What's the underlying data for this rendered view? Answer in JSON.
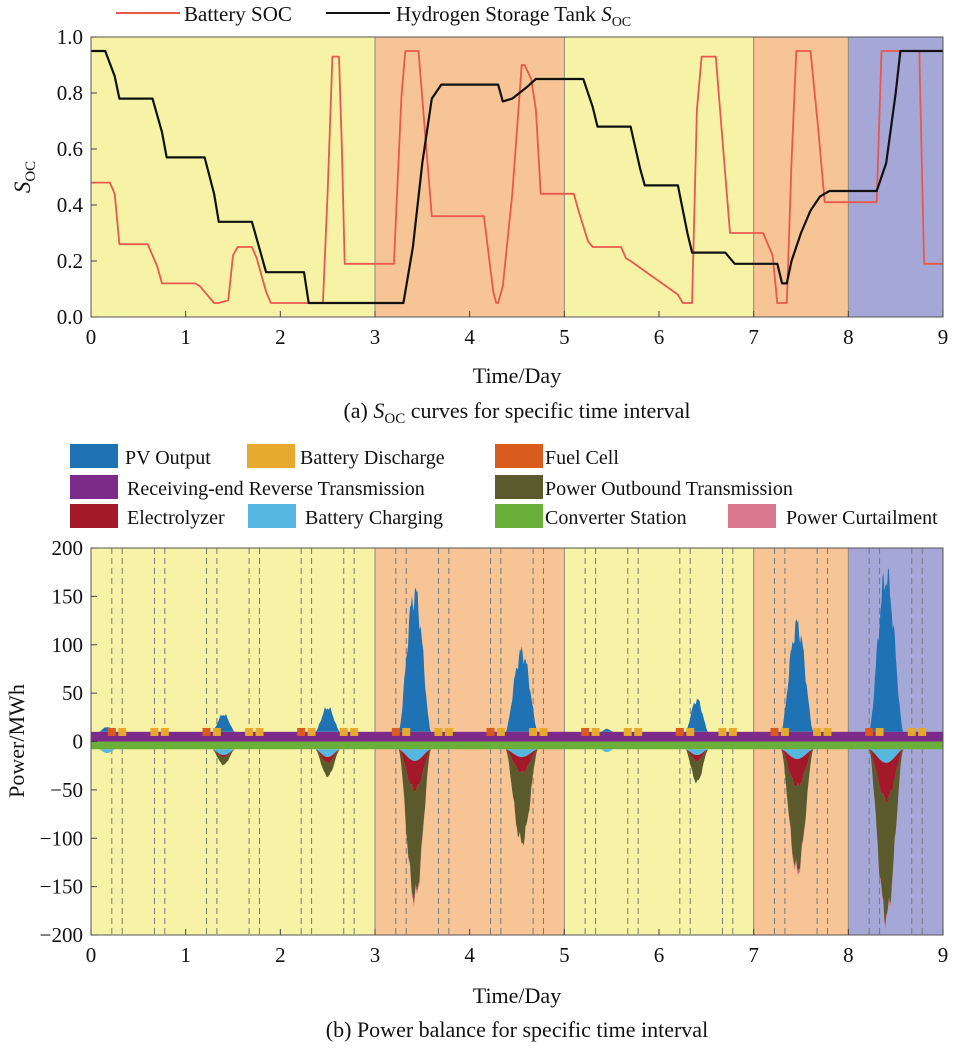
{
  "colors": {
    "band_yellow": "#f7f3a6",
    "band_orange": "#f6c495",
    "band_purple": "#a5a8d6",
    "battery_soc": "#e8584c",
    "hydrogen_soc": "#111111",
    "pv": "#1f72b4",
    "battery_discharge": "#e6a92d",
    "fuel_cell": "#d95b1e",
    "receiving_reverse": "#7d2b8b",
    "outbound": "#5a5a2c",
    "electrolyzer": "#a3192a",
    "battery_charging": "#56b7e0",
    "converter": "#6aaf3a",
    "curtailment": "#d9788f"
  },
  "chart_data": [
    {
      "type": "line",
      "caption_prefix": "(a) ",
      "caption_sym": "S",
      "caption_sub": "OC",
      "caption_suffix": " curves for specific time interval",
      "xlabel": "Time/Day",
      "ylabel_sym": "S",
      "ylabel_sub": "OC",
      "xlim": [
        0,
        9
      ],
      "ylim": [
        0,
        1
      ],
      "xticks": [
        "0",
        "1",
        "2",
        "3",
        "4",
        "5",
        "6",
        "7",
        "8",
        "9"
      ],
      "yticks": [
        "0.0",
        "0.2",
        "0.4",
        "0.6",
        "0.8",
        "1.0"
      ],
      "bands": [
        {
          "from": 0,
          "to": 3,
          "color": "yellow"
        },
        {
          "from": 3,
          "to": 5,
          "color": "orange"
        },
        {
          "from": 5,
          "to": 7,
          "color": "yellow"
        },
        {
          "from": 7,
          "to": 8,
          "color": "orange"
        },
        {
          "from": 8,
          "to": 9,
          "color": "purple"
        }
      ],
      "legend": {
        "battery": "Battery SOC",
        "hydrogen_prefix": "Hydrogen Storage Tank ",
        "hydrogen_sym": "S",
        "hydrogen_sub": "OC"
      },
      "series": [
        {
          "name": "Battery SOC",
          "color": "battery_soc",
          "x": [
            0,
            0.2,
            0.25,
            0.3,
            0.6,
            0.65,
            0.7,
            0.75,
            1.1,
            1.15,
            1.2,
            1.3,
            1.35,
            1.45,
            1.5,
            1.55,
            1.7,
            1.75,
            1.85,
            1.9,
            2.0,
            2.05,
            2.3,
            2.45,
            2.5,
            2.55,
            2.58,
            2.62,
            2.65,
            2.68,
            2.75,
            2.8,
            3.0,
            3.2,
            3.28,
            3.32,
            3.42,
            3.46,
            3.6,
            3.65,
            3.8,
            4.15,
            4.25,
            4.28,
            4.3,
            4.35,
            4.45,
            4.55,
            4.58,
            4.65,
            4.7,
            4.75,
            4.8,
            5.0,
            5.1,
            5.15,
            5.25,
            5.3,
            5.6,
            5.65,
            5.7,
            6.2,
            6.25,
            6.35,
            6.4,
            6.45,
            6.6,
            6.65,
            6.75,
            6.8,
            7.0,
            7.1,
            7.2,
            7.25,
            7.35,
            7.4,
            7.45,
            7.6,
            7.68,
            7.75,
            7.8,
            8.0,
            8.3,
            8.35,
            8.5,
            8.55,
            8.75,
            8.8,
            9.0
          ],
          "y": [
            0.48,
            0.48,
            0.44,
            0.26,
            0.26,
            0.22,
            0.18,
            0.12,
            0.12,
            0.11,
            0.09,
            0.05,
            0.05,
            0.06,
            0.22,
            0.25,
            0.25,
            0.21,
            0.09,
            0.05,
            0.05,
            0.05,
            0.05,
            0.05,
            0.45,
            0.93,
            0.93,
            0.93,
            0.6,
            0.19,
            0.19,
            0.19,
            0.19,
            0.19,
            0.79,
            0.95,
            0.95,
            0.95,
            0.36,
            0.36,
            0.36,
            0.36,
            0.09,
            0.05,
            0.05,
            0.11,
            0.44,
            0.9,
            0.9,
            0.85,
            0.74,
            0.44,
            0.44,
            0.44,
            0.44,
            0.38,
            0.27,
            0.25,
            0.25,
            0.21,
            0.2,
            0.08,
            0.05,
            0.05,
            0.74,
            0.93,
            0.93,
            0.72,
            0.3,
            0.3,
            0.3,
            0.3,
            0.22,
            0.05,
            0.05,
            0.55,
            0.95,
            0.95,
            0.68,
            0.41,
            0.41,
            0.41,
            0.41,
            0.95,
            0.95,
            0.95,
            0.95,
            0.19,
            0.19
          ]
        },
        {
          "name": "Hydrogen Storage Tank SOC",
          "color": "hydrogen_soc",
          "x": [
            0,
            0.15,
            0.25,
            0.3,
            0.65,
            0.75,
            0.8,
            1.2,
            1.3,
            1.35,
            1.7,
            1.8,
            1.85,
            2.25,
            2.3,
            3.25,
            3.3,
            3.4,
            3.5,
            3.6,
            3.7,
            4.3,
            4.35,
            4.45,
            4.6,
            4.7,
            5.0,
            5.2,
            5.3,
            5.35,
            5.7,
            5.8,
            5.85,
            6.2,
            6.3,
            6.35,
            6.7,
            6.8,
            7.0,
            7.25,
            7.3,
            7.35,
            7.4,
            7.5,
            7.6,
            7.7,
            7.8,
            8.0,
            8.3,
            8.4,
            8.5,
            8.55,
            8.6,
            9.0
          ],
          "y": [
            0.95,
            0.95,
            0.86,
            0.78,
            0.78,
            0.66,
            0.57,
            0.57,
            0.44,
            0.34,
            0.34,
            0.22,
            0.16,
            0.16,
            0.05,
            0.05,
            0.05,
            0.25,
            0.55,
            0.78,
            0.83,
            0.83,
            0.77,
            0.78,
            0.82,
            0.85,
            0.85,
            0.85,
            0.75,
            0.68,
            0.68,
            0.53,
            0.47,
            0.47,
            0.3,
            0.23,
            0.23,
            0.19,
            0.19,
            0.19,
            0.12,
            0.12,
            0.2,
            0.3,
            0.38,
            0.43,
            0.45,
            0.45,
            0.45,
            0.55,
            0.8,
            0.95,
            0.95,
            0.95
          ]
        }
      ]
    },
    {
      "type": "area",
      "caption": "(b) Power balance for specific time interval",
      "xlabel": "Time/Day",
      "ylabel": "Power/MWh",
      "xlim": [
        0,
        9
      ],
      "ylim": [
        -200,
        200
      ],
      "xticks": [
        "0",
        "1",
        "2",
        "3",
        "4",
        "5",
        "6",
        "7",
        "8",
        "9"
      ],
      "yticks": [
        "−200",
        "−150",
        "−100",
        "−50",
        "0",
        "50",
        "100",
        "150",
        "200"
      ],
      "bands": [
        {
          "from": 0,
          "to": 3,
          "color": "yellow"
        },
        {
          "from": 3,
          "to": 5,
          "color": "orange"
        },
        {
          "from": 5,
          "to": 7,
          "color": "yellow"
        },
        {
          "from": 7,
          "to": 8,
          "color": "orange"
        },
        {
          "from": 8,
          "to": 9,
          "color": "purple"
        }
      ],
      "dashed_lines_x": [
        0.22,
        0.33,
        0.67,
        0.78,
        1.22,
        1.33,
        1.67,
        1.78,
        2.22,
        2.33,
        2.67,
        2.78,
        3.22,
        3.33,
        3.67,
        3.78,
        4.22,
        4.33,
        4.67,
        4.78,
        5.22,
        5.33,
        5.67,
        5.78,
        6.22,
        6.33,
        6.67,
        6.78,
        7.22,
        7.33,
        7.67,
        7.78,
        8.22,
        8.33,
        8.67,
        8.78
      ],
      "legend": [
        {
          "label": "PV Output",
          "color": "pv"
        },
        {
          "label": "Battery Discharge",
          "color": "battery_discharge"
        },
        {
          "label": "Fuel Cell",
          "color": "fuel_cell"
        },
        {
          "label": "Receiving-end Reverse Transmission",
          "color": "receiving_reverse"
        },
        {
          "label": "Power Outbound Transmission",
          "color": "outbound"
        },
        {
          "label": "Electrolyzer",
          "color": "electrolyzer"
        },
        {
          "label": "Battery Charging",
          "color": "battery_charging"
        },
        {
          "label": "Converter Station",
          "color": "converter"
        },
        {
          "label": "Power Curtailment",
          "color": "curtailment"
        }
      ],
      "receiving_reverse_level": 10,
      "converter_level": -8,
      "pv_peaks": [
        {
          "center": 0.17,
          "width": 0.09,
          "peak": 5,
          "outbound": 0,
          "electrolyzer": 0,
          "charging": 4
        },
        {
          "center": 1.4,
          "width": 0.12,
          "peak": 18,
          "outbound": 8,
          "electrolyzer": 2,
          "charging": 6
        },
        {
          "center": 2.5,
          "width": 0.13,
          "peak": 25,
          "outbound": 14,
          "electrolyzer": 6,
          "charging": 8
        },
        {
          "center": 3.42,
          "width": 0.17,
          "peak": 143,
          "outbound": 110,
          "electrolyzer": 30,
          "charging": 12
        },
        {
          "center": 4.55,
          "width": 0.17,
          "peak": 82,
          "outbound": 72,
          "electrolyzer": 16,
          "charging": 8
        },
        {
          "center": 5.45,
          "width": 0.07,
          "peak": 3,
          "outbound": 0,
          "electrolyzer": 0,
          "charging": 3
        },
        {
          "center": 6.4,
          "width": 0.12,
          "peak": 33,
          "outbound": 22,
          "electrolyzer": 6,
          "charging": 6
        },
        {
          "center": 7.46,
          "width": 0.17,
          "peak": 110,
          "outbound": 86,
          "electrolyzer": 28,
          "charging": 10
        },
        {
          "center": 8.4,
          "width": 0.18,
          "peak": 160,
          "outbound": 120,
          "electrolyzer": 38,
          "charging": 14
        }
      ]
    }
  ]
}
